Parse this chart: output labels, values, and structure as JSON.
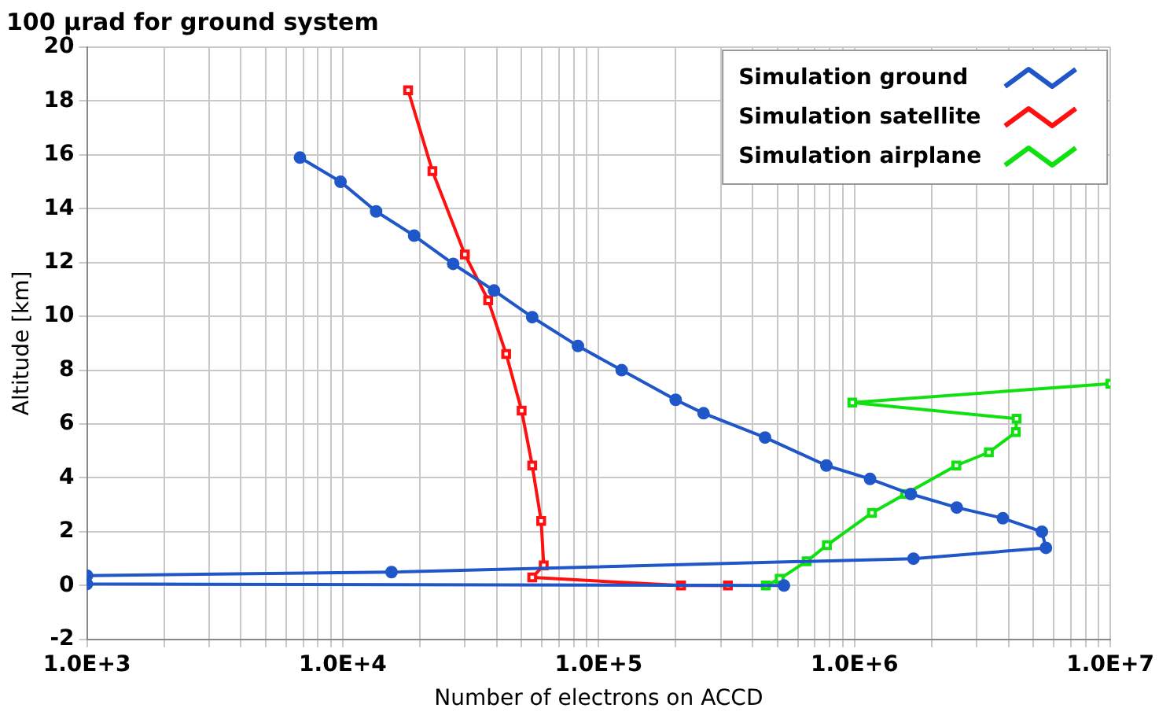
{
  "chart_data": {
    "type": "line",
    "title": "100 µrad for ground system",
    "xlabel": "Number of electrons on ACCD",
    "ylabel": "Altitude [km]",
    "log": "x",
    "grid": true,
    "legend": "top right",
    "xlim": [
      1000,
      10000000
    ],
    "ylim": [
      -2,
      20
    ],
    "xticks": [
      {
        "value": 1000,
        "label": "1.0E+3"
      },
      {
        "value": 2000,
        "label": null
      },
      {
        "value": 3000,
        "label": null
      },
      {
        "value": 4000,
        "label": null
      },
      {
        "value": 5000,
        "label": null
      },
      {
        "value": 6000,
        "label": null
      },
      {
        "value": 7000,
        "label": null
      },
      {
        "value": 8000,
        "label": null
      },
      {
        "value": 9000,
        "label": null
      },
      {
        "value": 10000,
        "label": "1.0E+4"
      },
      {
        "value": 20000,
        "label": null
      },
      {
        "value": 30000,
        "label": null
      },
      {
        "value": 40000,
        "label": null
      },
      {
        "value": 50000,
        "label": null
      },
      {
        "value": 60000,
        "label": null
      },
      {
        "value": 70000,
        "label": null
      },
      {
        "value": 80000,
        "label": null
      },
      {
        "value": 90000,
        "label": null
      },
      {
        "value": 100000,
        "label": "1.0E+5"
      },
      {
        "value": 200000,
        "label": null
      },
      {
        "value": 300000,
        "label": null
      },
      {
        "value": 400000,
        "label": null
      },
      {
        "value": 500000,
        "label": null
      },
      {
        "value": 600000,
        "label": null
      },
      {
        "value": 700000,
        "label": null
      },
      {
        "value": 800000,
        "label": null
      },
      {
        "value": 900000,
        "label": null
      },
      {
        "value": 1000000,
        "label": "1.0E+6"
      },
      {
        "value": 2000000,
        "label": null
      },
      {
        "value": 3000000,
        "label": null
      },
      {
        "value": 4000000,
        "label": null
      },
      {
        "value": 5000000,
        "label": null
      },
      {
        "value": 6000000,
        "label": null
      },
      {
        "value": 7000000,
        "label": null
      },
      {
        "value": 8000000,
        "label": null
      },
      {
        "value": 9000000,
        "label": null
      },
      {
        "value": 10000000,
        "label": "1.0E+7"
      }
    ],
    "yticks": [
      -2,
      0,
      2,
      4,
      6,
      8,
      10,
      12,
      14,
      16,
      18,
      20
    ],
    "series": [
      {
        "name": "Simulation ground",
        "color": "#1f56c8",
        "marker": "circle",
        "x": [
          6800,
          9800,
          13500,
          19000,
          27000,
          39000,
          55000,
          83000,
          123000,
          200000,
          257000,
          447000,
          776000,
          1150000,
          1660000,
          2510000,
          3800000,
          5400000,
          5600000,
          1700000,
          15500,
          1000,
          1000,
          530000
        ],
        "values": [
          15.9,
          15,
          13.9,
          13,
          11.95,
          10.96,
          9.97,
          8.9,
          8,
          6.9,
          6.4,
          5.5,
          4.46,
          3.96,
          3.4,
          2.9,
          2.5,
          2,
          1.4,
          1,
          0.5,
          0.37,
          0.06,
          0
        ]
      },
      {
        "name": "Simulation satellite",
        "color": "#ff1010",
        "marker": "square",
        "x": [
          18000,
          22400,
          30000,
          37000,
          43500,
          50000,
          55000,
          59600,
          61000,
          55000,
          210000,
          320000
        ],
        "values": [
          18.4,
          15.4,
          12.3,
          10.6,
          8.6,
          6.5,
          4.46,
          2.4,
          0.75,
          0.3,
          0,
          0
        ]
      },
      {
        "name": "Simulation airplane",
        "color": "#10e010",
        "marker": "square",
        "x": [
          450000,
          510000,
          650000,
          780000,
          1170000,
          1580000,
          2500000,
          3350000,
          4270000,
          4300000,
          980000,
          10000000
        ],
        "values": [
          0,
          0.25,
          0.9,
          1.5,
          2.7,
          3.4,
          4.46,
          4.95,
          5.7,
          6.2,
          6.8,
          7.5
        ]
      }
    ]
  }
}
